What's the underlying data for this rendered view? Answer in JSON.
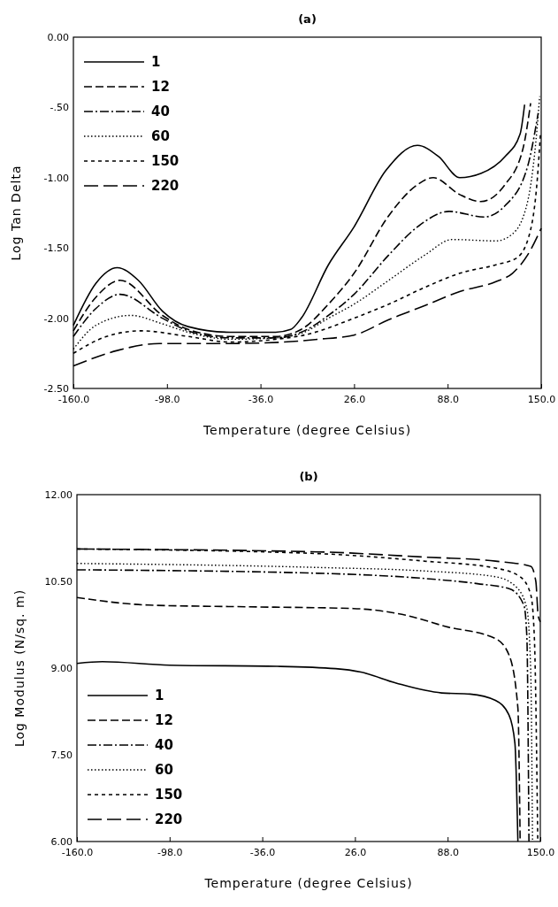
{
  "chart_data": [
    {
      "type": "line",
      "title": "(a)",
      "xlabel": "Temperature  (degree Celsius)",
      "ylabel": "Log Tan Delta",
      "xlim": [
        -160,
        150
      ],
      "xticks": [
        {
          "value": -160,
          "label": "-160.0"
        },
        {
          "value": -98,
          "label": "-98.0"
        },
        {
          "value": -36,
          "label": "-36.0"
        },
        {
          "value": 26,
          "label": "26.0"
        },
        {
          "value": 88,
          "label": "88.0"
        },
        {
          "value": 150,
          "label": "150.0"
        }
      ],
      "ylim": [
        -2.5,
        0
      ],
      "yticks": [
        {
          "value": -2.5,
          "label": "-2.50"
        },
        {
          "value": -2,
          "label": "-2.00"
        },
        {
          "value": -1.5,
          "label": "-1.50"
        },
        {
          "value": -1,
          "label": "-1.00"
        },
        {
          "value": -0.5,
          "label": "-.50"
        },
        {
          "value": 0,
          "label": "0.00"
        }
      ],
      "legend": "top left",
      "marker": "none",
      "series": [
        {
          "name": "1",
          "color": "#000000",
          "line_style": "solid",
          "x": [
            -160,
            -145,
            -131,
            -117,
            -101,
            -84,
            -56,
            -26,
            -16,
            -9,
            9,
            26,
            47,
            68,
            82,
            96,
            110,
            126,
            136,
            139
          ],
          "values": [
            -2.05,
            -1.75,
            -1.64,
            -1.73,
            -1.95,
            -2.06,
            -2.1,
            -2.1,
            -2.08,
            -2.0,
            -1.62,
            -1.35,
            -0.95,
            -0.77,
            -0.85,
            -1.0,
            -0.97,
            -0.85,
            -0.69,
            -0.48
          ]
        },
        {
          "name": "12",
          "color": "#000000",
          "line_style": "dashed",
          "x": [
            -160,
            -145,
            -129,
            -101,
            -84,
            -56,
            -26,
            -9,
            9,
            26,
            49,
            68,
            78.5,
            96,
            110,
            126,
            138,
            143
          ],
          "values": [
            -2.09,
            -1.85,
            -1.73,
            -1.98,
            -2.08,
            -2.13,
            -2.13,
            -2.08,
            -1.9,
            -1.68,
            -1.27,
            -1.05,
            -1.0,
            -1.12,
            -1.17,
            -1.05,
            -0.79,
            -0.47
          ]
        },
        {
          "name": "40",
          "color": "#000000",
          "line_style": "dashdot",
          "x": [
            -160,
            -145,
            -129,
            -101,
            -84,
            -56,
            -26,
            -7,
            9,
            26,
            49,
            68,
            89,
            112,
            126,
            141,
            148
          ],
          "values": [
            -2.13,
            -1.93,
            -1.83,
            -2.0,
            -2.09,
            -2.14,
            -2.14,
            -2.09,
            -1.98,
            -1.83,
            -1.55,
            -1.35,
            -1.24,
            -1.28,
            -1.2,
            -0.92,
            -0.54
          ]
        },
        {
          "name": "60",
          "color": "#000000",
          "line_style": "dotted",
          "x": [
            -160,
            -145,
            -122,
            -101,
            -84,
            -56,
            -26,
            -7,
            9,
            26,
            49,
            73,
            91,
            120,
            131,
            141,
            146.5,
            149
          ],
          "values": [
            -2.22,
            -2.05,
            -1.98,
            -2.04,
            -2.1,
            -2.15,
            -2.14,
            -2.1,
            -2.0,
            -1.9,
            -1.73,
            -1.55,
            -1.44,
            -1.45,
            -1.4,
            -1.17,
            -0.74,
            -0.42
          ]
        },
        {
          "name": "150",
          "color": "#000000",
          "line_style": "shortdash",
          "x": [
            -160,
            -138,
            -115,
            -84,
            -56,
            -26,
            -7,
            26,
            49,
            73,
            96,
            120,
            134,
            143,
            147.5,
            149.5
          ],
          "values": [
            -2.25,
            -2.13,
            -2.09,
            -2.13,
            -2.17,
            -2.15,
            -2.12,
            -2.0,
            -1.9,
            -1.78,
            -1.68,
            -1.62,
            -1.57,
            -1.37,
            -1.0,
            -0.69
          ]
        },
        {
          "name": "220",
          "color": "#000000",
          "line_style": "longdash",
          "x": [
            -160,
            -131,
            -103,
            -56,
            -21,
            2,
            26,
            49,
            73,
            96,
            120,
            131,
            141,
            150
          ],
          "values": [
            -2.34,
            -2.23,
            -2.18,
            -2.18,
            -2.17,
            -2.15,
            -2.12,
            -2.01,
            -1.91,
            -1.81,
            -1.74,
            -1.68,
            -1.55,
            -1.36
          ]
        }
      ]
    },
    {
      "type": "line",
      "title": "(b)",
      "xlabel": "Temperature  (degree Celsius)",
      "ylabel": "Log Modulus (N/sq. m)",
      "xlim": [
        -160,
        150
      ],
      "xticks": [
        {
          "value": -160,
          "label": "-160.0"
        },
        {
          "value": -98,
          "label": "-98.0"
        },
        {
          "value": -36,
          "label": "-36.0"
        },
        {
          "value": 26,
          "label": "26.0"
        },
        {
          "value": 88,
          "label": "88.0"
        },
        {
          "value": 150,
          "label": "150.0"
        }
      ],
      "ylim": [
        6,
        12
      ],
      "yticks": [
        {
          "value": 6,
          "label": "6.00"
        },
        {
          "value": 7.5,
          "label": "7.50"
        },
        {
          "value": 9,
          "label": "9.00"
        },
        {
          "value": 10.5,
          "label": "10.50"
        },
        {
          "value": 12,
          "label": "12.00"
        }
      ],
      "legend": "bottom left",
      "marker": "none",
      "series": [
        {
          "name": "1",
          "color": "#000000",
          "line_style": "solid",
          "x": [
            -160,
            -143,
            -98,
            -26,
            13,
            30,
            53.6,
            84,
            103,
            120,
            129,
            133,
            135
          ],
          "values": [
            9.08,
            9.11,
            9.05,
            9.03,
            8.99,
            8.93,
            8.74,
            8.57,
            8.55,
            8.44,
            8.19,
            7.7,
            6.0
          ]
        },
        {
          "name": "12",
          "color": "#000000",
          "line_style": "dashed",
          "x": [
            -160,
            -112,
            -46,
            25,
            60.7,
            86.7,
            120,
            129,
            135,
            136.5
          ],
          "values": [
            10.22,
            10.09,
            10.06,
            10.03,
            9.91,
            9.72,
            9.51,
            9.23,
            8.31,
            6.0
          ]
        },
        {
          "name": "40",
          "color": "#000000",
          "line_style": "dashdot",
          "x": [
            -160,
            1.5,
            72.5,
            108,
            129.5,
            139,
            141,
            142.4
          ],
          "values": [
            10.7,
            10.64,
            10.55,
            10.46,
            10.37,
            10.09,
            9.54,
            6.0
          ]
        },
        {
          "name": "60",
          "color": "#000000",
          "line_style": "dotted",
          "x": [
            -160,
            1.5,
            72.5,
            120,
            134,
            141,
            143.6,
            144.8
          ],
          "values": [
            10.81,
            10.74,
            10.68,
            10.58,
            10.4,
            10.03,
            8.93,
            6.0
          ]
        },
        {
          "name": "150",
          "color": "#000000",
          "line_style": "shortdash",
          "x": [
            -160,
            1.5,
            72.5,
            120,
            136.5,
            143.6,
            146,
            148.3
          ],
          "values": [
            11.06,
            10.98,
            10.85,
            10.73,
            10.58,
            10.27,
            9.54,
            6.0
          ]
        },
        {
          "name": "220",
          "color": "#000000",
          "line_style": "longdash",
          "x": [
            -160,
            1.5,
            72.5,
            120,
            143.6,
            147,
            148.6,
            150
          ],
          "values": [
            11.06,
            11.01,
            10.92,
            10.85,
            10.76,
            10.5,
            9.9,
            9.8
          ]
        }
      ]
    }
  ]
}
